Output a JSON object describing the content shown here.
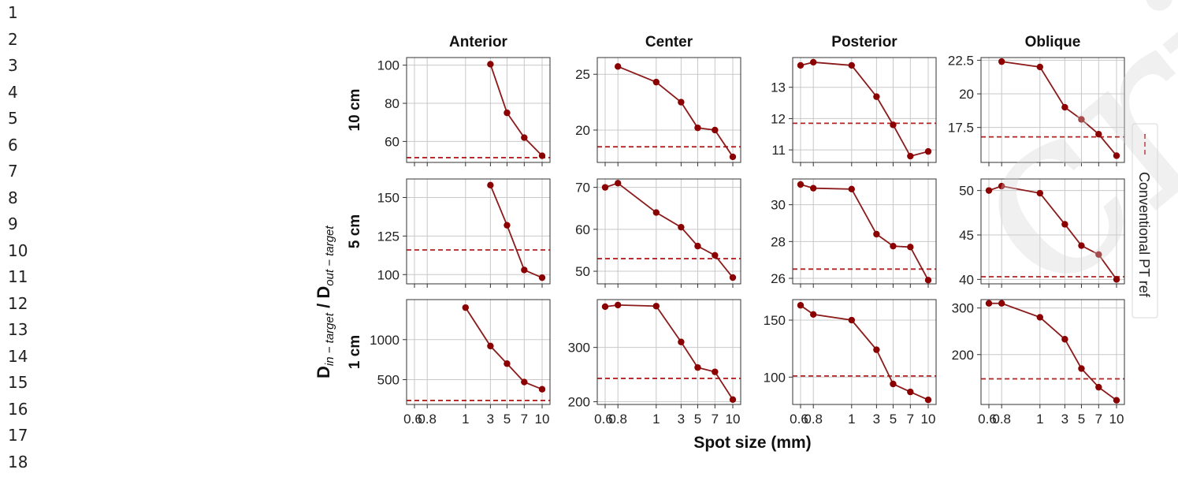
{
  "line_numbers": [
    "1",
    "2",
    "3",
    "4",
    "5",
    "6",
    "7",
    "8",
    "9",
    "10",
    "11",
    "12",
    "13",
    "14",
    "15",
    "16",
    "17",
    "18"
  ],
  "watermark_text": "cript",
  "chart_data": {
    "type": "line",
    "grid": true,
    "ylabel": "D_{in-target} / D_{out-target}",
    "ylabel_parts": {
      "base1": "D",
      "sub1": "in − target",
      "sep": " / ",
      "base2": "D",
      "sub2": "out − target"
    },
    "xlabel": "Spot size (mm)",
    "x_categories": [
      "0.6",
      "0.8",
      "1",
      "3",
      "5",
      "7",
      "10"
    ],
    "columns": [
      "Anterior",
      "Center",
      "Posterior",
      "Oblique"
    ],
    "rows": [
      "10 cm",
      "5 cm",
      "1 cm"
    ],
    "legend": {
      "label": "Conventional PT ref",
      "placement": "right",
      "style": "dashed"
    },
    "colors": {
      "series": "#8b1a1a",
      "marker": "#8b0000",
      "reference": "#b22222",
      "grid": "#c8c8c8"
    },
    "panels": [
      [
        {
          "x": [
            "3",
            "5",
            "7",
            "10"
          ],
          "y": [
            100.5,
            75,
            62,
            52.5
          ],
          "ref": 51.5,
          "ylim": [
            49,
            104
          ],
          "yticks": [
            60,
            80,
            100
          ]
        },
        {
          "x": [
            "0.8",
            "1",
            "3",
            "5",
            "7",
            "10"
          ],
          "y": [
            25.7,
            24.3,
            22.5,
            20.2,
            20.0,
            17.6
          ],
          "ref": 18.5,
          "ylim": [
            17.1,
            26.5
          ],
          "yticks": [
            20,
            25
          ]
        },
        {
          "x": [
            "0.6",
            "0.8",
            "1",
            "3",
            "5",
            "7",
            "10"
          ],
          "y": [
            13.7,
            13.8,
            13.7,
            12.7,
            11.8,
            10.8,
            10.95
          ],
          "ref": 11.85,
          "ylim": [
            10.6,
            13.95
          ],
          "yticks": [
            11,
            12,
            13
          ]
        },
        {
          "x": [
            "0.8",
            "1",
            "3",
            "5",
            "7",
            "10"
          ],
          "y": [
            22.4,
            22.0,
            19.0,
            18.1,
            17.0,
            15.4
          ],
          "ref": 16.8,
          "ylim": [
            14.9,
            22.7
          ],
          "yticks": [
            17.5,
            20.0,
            22.5
          ]
        }
      ],
      [
        {
          "x": [
            "3",
            "5",
            "7",
            "10"
          ],
          "y": [
            158,
            132,
            103,
            98
          ],
          "ref": 116,
          "ylim": [
            94,
            162
          ],
          "yticks": [
            100,
            125,
            150
          ]
        },
        {
          "x": [
            "0.6",
            "0.8",
            "1",
            "3",
            "5",
            "7",
            "10"
          ],
          "y": [
            70,
            71,
            64,
            60.5,
            56,
            53.8,
            48.5
          ],
          "ref": 53,
          "ylim": [
            47,
            72
          ],
          "yticks": [
            50,
            60,
            70
          ]
        },
        {
          "x": [
            "0.6",
            "0.8",
            "1",
            "3",
            "5",
            "7",
            "10"
          ],
          "y": [
            31.1,
            30.9,
            30.85,
            28.4,
            27.75,
            27.7,
            25.9
          ],
          "ref": 26.5,
          "ylim": [
            25.7,
            31.4
          ],
          "yticks": [
            26,
            28,
            30
          ]
        },
        {
          "x": [
            "0.6",
            "0.8",
            "1",
            "3",
            "5",
            "7",
            "10"
          ],
          "y": [
            50,
            50.5,
            49.7,
            46.2,
            43.8,
            42.8,
            40
          ],
          "ref": 40.3,
          "ylim": [
            39.5,
            51.3
          ],
          "yticks": [
            40,
            45,
            50
          ]
        }
      ],
      [
        {
          "x": [
            "1",
            "3",
            "5",
            "7",
            "10"
          ],
          "y": [
            1400,
            920,
            700,
            470,
            380
          ],
          "ref": 240,
          "ylim": [
            190,
            1500
          ],
          "yticks": [
            500,
            1000
          ]
        },
        {
          "x": [
            "0.6",
            "0.8",
            "1",
            "3",
            "5",
            "7",
            "10"
          ],
          "y": [
            375,
            378,
            376,
            310,
            263,
            255,
            204
          ],
          "ref": 243,
          "ylim": [
            195,
            388
          ],
          "yticks": [
            200,
            300
          ]
        },
        {
          "x": [
            "0.6",
            "0.8",
            "1",
            "3",
            "5",
            "7",
            "10"
          ],
          "y": [
            163,
            155,
            150,
            124,
            94,
            87,
            80
          ],
          "ref": 101,
          "ylim": [
            76,
            168
          ],
          "yticks": [
            100,
            150
          ]
        },
        {
          "x": [
            "0.6",
            "0.8",
            "1",
            "3",
            "5",
            "7",
            "10"
          ],
          "y": [
            310,
            310,
            280,
            233,
            170,
            130,
            102
          ],
          "ref": 148,
          "ylim": [
            93,
            318
          ],
          "yticks": [
            200,
            300
          ]
        }
      ]
    ]
  }
}
